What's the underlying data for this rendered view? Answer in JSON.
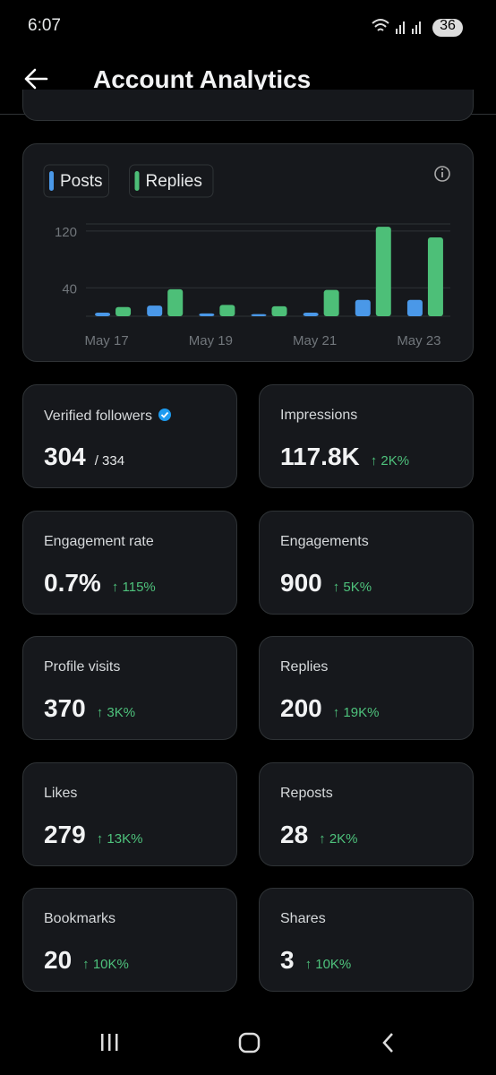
{
  "status_bar": {
    "time": "6:07",
    "battery": "36"
  },
  "header": {
    "title": "Account Analytics"
  },
  "chart": {
    "type": "bar",
    "categories": [
      "May 17",
      null,
      "May 19",
      null,
      "May 21",
      null,
      "May 23"
    ],
    "series": [
      {
        "name": "Posts",
        "color": "#4a98e8",
        "values": [
          5,
          15,
          4,
          3,
          5,
          23,
          23
        ]
      },
      {
        "name": "Replies",
        "color": "#4dbf78",
        "values": [
          13,
          38,
          16,
          14,
          37,
          126,
          111
        ]
      }
    ],
    "ylim": [
      0,
      130
    ],
    "yticks": [
      40,
      120
    ],
    "grid": true
  },
  "cards": [
    {
      "label": "Verified followers",
      "value": "304",
      "total": "/ 334"
    },
    {
      "label": "Impressions",
      "value": "117.8K",
      "change": "↑ 2K%"
    },
    {
      "label": "Engagement rate",
      "value": "0.7%",
      "change": "↑ 115%"
    },
    {
      "label": "Engagements",
      "value": "900",
      "change": "↑ 5K%"
    },
    {
      "label": "Profile visits",
      "value": "370",
      "change": "↑ 3K%"
    },
    {
      "label": "Replies",
      "value": "200",
      "change": "↑ 19K%"
    },
    {
      "label": "Likes",
      "value": "279",
      "change": "↑ 13K%"
    },
    {
      "label": "Reposts",
      "value": "28",
      "change": "↑ 2K%"
    },
    {
      "label": "Bookmarks",
      "value": "20",
      "change": "↑ 10K%"
    },
    {
      "label": "Shares",
      "value": "3",
      "change": "↑ 10K%"
    }
  ]
}
